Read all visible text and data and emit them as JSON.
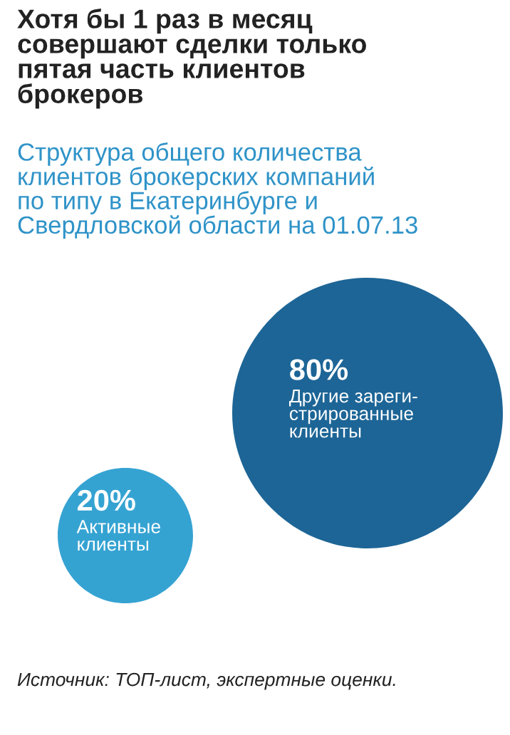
{
  "chart_data": {
    "type": "other",
    "title": "Хотя бы 1 раз в месяц\nсовершают сделки только\nпятая часть клиентов\nброкеров",
    "subtitle": "Структура общего количества\nклиентов брокерских компаний\nпо типу в Екатеринбурге и\nСвердловской области на 01.07.13",
    "categories": [
      "Другие зареги-\nстрированные\nклиенты",
      "Активные\nклиенты"
    ],
    "values": [
      80,
      20
    ],
    "value_labels": [
      "80%",
      "20%"
    ],
    "colors": [
      "#1d6596",
      "#35a3d2"
    ],
    "annotations": [
      "Источник: ТОП-лист, экспертные оценки."
    ]
  }
}
